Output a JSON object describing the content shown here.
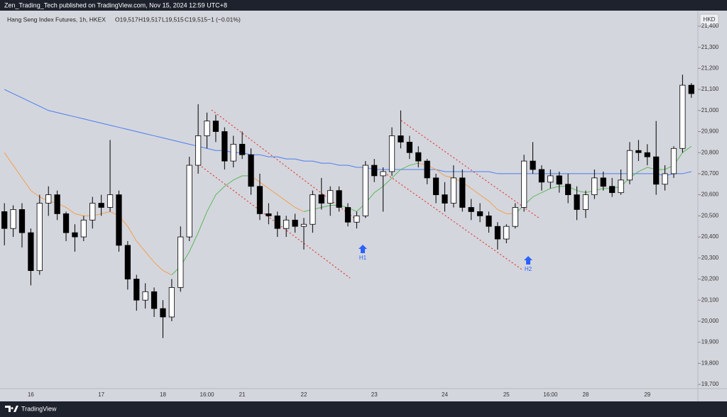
{
  "header": {
    "text": "Zen_Trading_Tech published on TradingView.com, Nov 15, 2024 12:59 UTC+8"
  },
  "footer": {
    "brand": "TradingView"
  },
  "chart_data": {
    "type": "candlestick",
    "symbol": "Hang Seng Index Futures, 1h, HKEX",
    "ohlc_readout": [
      "O19,517",
      "H19,517",
      "L19,515",
      "C19,515",
      "−1 (−0.01%)"
    ],
    "currency": "HKD",
    "categories": [
      null,
      null,
      null,
      "16",
      null,
      null,
      null,
      null,
      null,
      null,
      null,
      "17",
      null,
      null,
      null,
      null,
      null,
      null,
      "18",
      null,
      null,
      null,
      null,
      "16:00",
      null,
      null,
      null,
      "21",
      null,
      null,
      null,
      null,
      null,
      null,
      "22",
      null,
      null,
      null,
      null,
      null,
      null,
      null,
      "23",
      null,
      null,
      null,
      null,
      null,
      null,
      null,
      "24",
      null,
      null,
      null,
      null,
      null,
      null,
      "25",
      null,
      null,
      null,
      null,
      "16:00",
      null,
      null,
      null,
      "28",
      null,
      null,
      null,
      null,
      null,
      null,
      "29",
      null,
      null,
      null,
      null,
      null
    ],
    "open": [
      20520,
      20440,
      20530,
      20420,
      20240,
      20560,
      20600,
      20510,
      20420,
      20400,
      20480,
      20560,
      20540,
      20600,
      20360,
      20200,
      20100,
      20140,
      20060,
      20020,
      20160,
      20400,
      20740,
      20880,
      20950,
      20900,
      20760,
      20840,
      20790,
      20640,
      20510,
      20500,
      20440,
      20480,
      20450,
      20460,
      20600,
      20560,
      20620,
      20540,
      20470,
      20500,
      20740,
      20690,
      20710,
      20880,
      20850,
      20800,
      20760,
      20680,
      20600,
      20560,
      20680,
      20540,
      20520,
      20500,
      20450,
      20390,
      20450,
      20540,
      20760,
      20720,
      20660,
      20690,
      20650,
      20600,
      20530,
      20600,
      20680,
      20640,
      20610,
      20670,
      20810,
      20800,
      20780,
      20650,
      20700,
      20820,
      21120
    ],
    "high": [
      20560,
      20550,
      20560,
      20440,
      20600,
      20640,
      20620,
      20520,
      20460,
      20500,
      20590,
      20600,
      20860,
      20620,
      20380,
      20220,
      20180,
      20160,
      20100,
      20200,
      20450,
      20780,
      21030,
      20990,
      20980,
      20920,
      20880,
      20900,
      20820,
      20700,
      20560,
      20520,
      20500,
      20510,
      20490,
      20620,
      20680,
      20640,
      20640,
      20560,
      20520,
      20760,
      20770,
      20730,
      20920,
      21000,
      20880,
      20830,
      20770,
      20700,
      20660,
      20740,
      20720,
      20580,
      20560,
      20520,
      20470,
      20460,
      20560,
      20790,
      20850,
      20740,
      20720,
      20710,
      20700,
      20640,
      20620,
      20720,
      20710,
      20680,
      20720,
      20850,
      20860,
      20840,
      20950,
      20740,
      20830,
      21170,
      21130
    ],
    "low": [
      20360,
      20400,
      20350,
      20170,
      20220,
      20500,
      20480,
      20380,
      20330,
      20380,
      20440,
      20500,
      20520,
      20330,
      20150,
      20050,
      20060,
      20020,
      19920,
      20000,
      20140,
      20380,
      20700,
      20820,
      20850,
      20720,
      20730,
      20770,
      20600,
      20480,
      20460,
      20400,
      20400,
      20420,
      20340,
      20420,
      20530,
      20500,
      20520,
      20450,
      20440,
      20490,
      20660,
      20520,
      20690,
      20820,
      20770,
      20730,
      20650,
      20560,
      20520,
      20540,
      20520,
      20480,
      20470,
      20420,
      20340,
      20370,
      20440,
      20520,
      20700,
      20620,
      20630,
      20610,
      20560,
      20480,
      20490,
      20580,
      20620,
      20590,
      20600,
      20650,
      20760,
      20740,
      20600,
      20620,
      20680,
      20800,
      21060
    ],
    "close": [
      20440,
      20530,
      20420,
      20240,
      20560,
      20600,
      20510,
      20420,
      20400,
      20480,
      20560,
      20540,
      20600,
      20360,
      20200,
      20100,
      20140,
      20060,
      20020,
      20160,
      20400,
      20740,
      20880,
      20950,
      20900,
      20760,
      20840,
      20790,
      20640,
      20510,
      20500,
      20440,
      20480,
      20450,
      20460,
      20600,
      20560,
      20620,
      20540,
      20470,
      20500,
      20740,
      20690,
      20710,
      20880,
      20850,
      20800,
      20760,
      20680,
      20600,
      20560,
      20680,
      20540,
      20520,
      20500,
      20450,
      20390,
      20450,
      20540,
      20760,
      20720,
      20660,
      20690,
      20650,
      20600,
      20530,
      20600,
      20680,
      20640,
      20610,
      20670,
      20810,
      20800,
      20780,
      20650,
      20700,
      20820,
      21120,
      21080
    ],
    "up_color": "#ffffff",
    "down_color": "#000000",
    "wick_color": "#000000",
    "overlays": [
      {
        "color": "#4a7df0",
        "values": [
          21100,
          21080,
          21060,
          21040,
          21020,
          21000,
          20990,
          20980,
          20970,
          20960,
          20950,
          20940,
          20930,
          20920,
          20910,
          20900,
          20890,
          20880,
          20870,
          20860,
          20850,
          20840,
          20830,
          20820,
          20810,
          20810,
          20800,
          20800,
          20790,
          20790,
          20780,
          20780,
          20770,
          20770,
          20760,
          20760,
          20750,
          20750,
          20740,
          20740,
          20730,
          20730,
          20720,
          20720,
          20720,
          20720,
          20720,
          20720,
          20720,
          20720,
          20710,
          20710,
          20710,
          20710,
          20710,
          20710,
          20700,
          20700,
          20700,
          20700,
          20700,
          20700,
          20700,
          20700,
          20700,
          20700,
          20700,
          20700,
          20700,
          20700,
          20700,
          20700,
          20700,
          20700,
          20700,
          20690,
          20700,
          20700,
          20710
        ]
      },
      {
        "color": "#f0a050",
        "values": [
          20800,
          20740,
          20680,
          20620,
          20590,
          20570,
          20560,
          20540,
          20510,
          20500,
          20500,
          20510,
          20520,
          20500,
          20450,
          20380,
          20330,
          20280,
          20240,
          20220,
          null,
          null,
          null,
          null,
          null,
          null,
          null,
          null,
          20690,
          20660,
          20630,
          20600,
          20570,
          20540,
          20520,
          null,
          null,
          null,
          null,
          null,
          null,
          null,
          null,
          null,
          null,
          null,
          null,
          20750,
          20740,
          20720,
          20690,
          20680,
          20660,
          20630,
          20600,
          20570,
          20530,
          20510,
          20510,
          null,
          null,
          null,
          null,
          null,
          null,
          null,
          null,
          null,
          null,
          null,
          null,
          null,
          null,
          null,
          null,
          null,
          null,
          null,
          null
        ]
      },
      {
        "color": "#5cb85c",
        "values": [
          null,
          null,
          null,
          null,
          null,
          null,
          null,
          null,
          null,
          null,
          null,
          null,
          null,
          null,
          null,
          null,
          null,
          null,
          null,
          20220,
          20260,
          20330,
          20420,
          20520,
          20600,
          20640,
          20670,
          20690,
          20690,
          null,
          null,
          null,
          null,
          null,
          20520,
          20530,
          20540,
          20550,
          20550,
          20540,
          20520,
          20560,
          20610,
          20640,
          20680,
          20720,
          20740,
          20750,
          null,
          null,
          null,
          null,
          null,
          null,
          null,
          null,
          null,
          null,
          20510,
          20550,
          20590,
          20610,
          20630,
          20640,
          20640,
          20620,
          20610,
          20620,
          20630,
          20630,
          20640,
          20680,
          20710,
          20730,
          20720,
          20720,
          20740,
          20800,
          20830
        ]
      }
    ],
    "annotations": [
      {
        "label": "H1"
      },
      {
        "label": "H2"
      }
    ],
    "ylim": [
      19680,
      21457
    ],
    "yticks": [
      {
        "value": 19700,
        "label": "19,700"
      },
      {
        "value": 19800,
        "label": "19,800"
      },
      {
        "value": 19900,
        "label": "19,900"
      },
      {
        "value": 20000,
        "label": "20,000"
      },
      {
        "value": 20100,
        "label": "20,100"
      },
      {
        "value": 20200,
        "label": "20,200"
      },
      {
        "value": 20300,
        "label": "20,300"
      },
      {
        "value": 20400,
        "label": "20,400"
      },
      {
        "value": 20500,
        "label": "20,500"
      },
      {
        "value": 20600,
        "label": "20,600"
      },
      {
        "value": 20700,
        "label": "20,700"
      },
      {
        "value": 20800,
        "label": "20,800"
      },
      {
        "value": 20900,
        "label": "20,900"
      },
      {
        "value": 21000,
        "label": "21,000"
      },
      {
        "value": 21100,
        "label": "21,100"
      },
      {
        "value": 21200,
        "label": "21,200"
      },
      {
        "value": 21300,
        "label": "21,300"
      },
      {
        "value": 21400,
        "label": "21,400"
      }
    ],
    "grid": false
  }
}
